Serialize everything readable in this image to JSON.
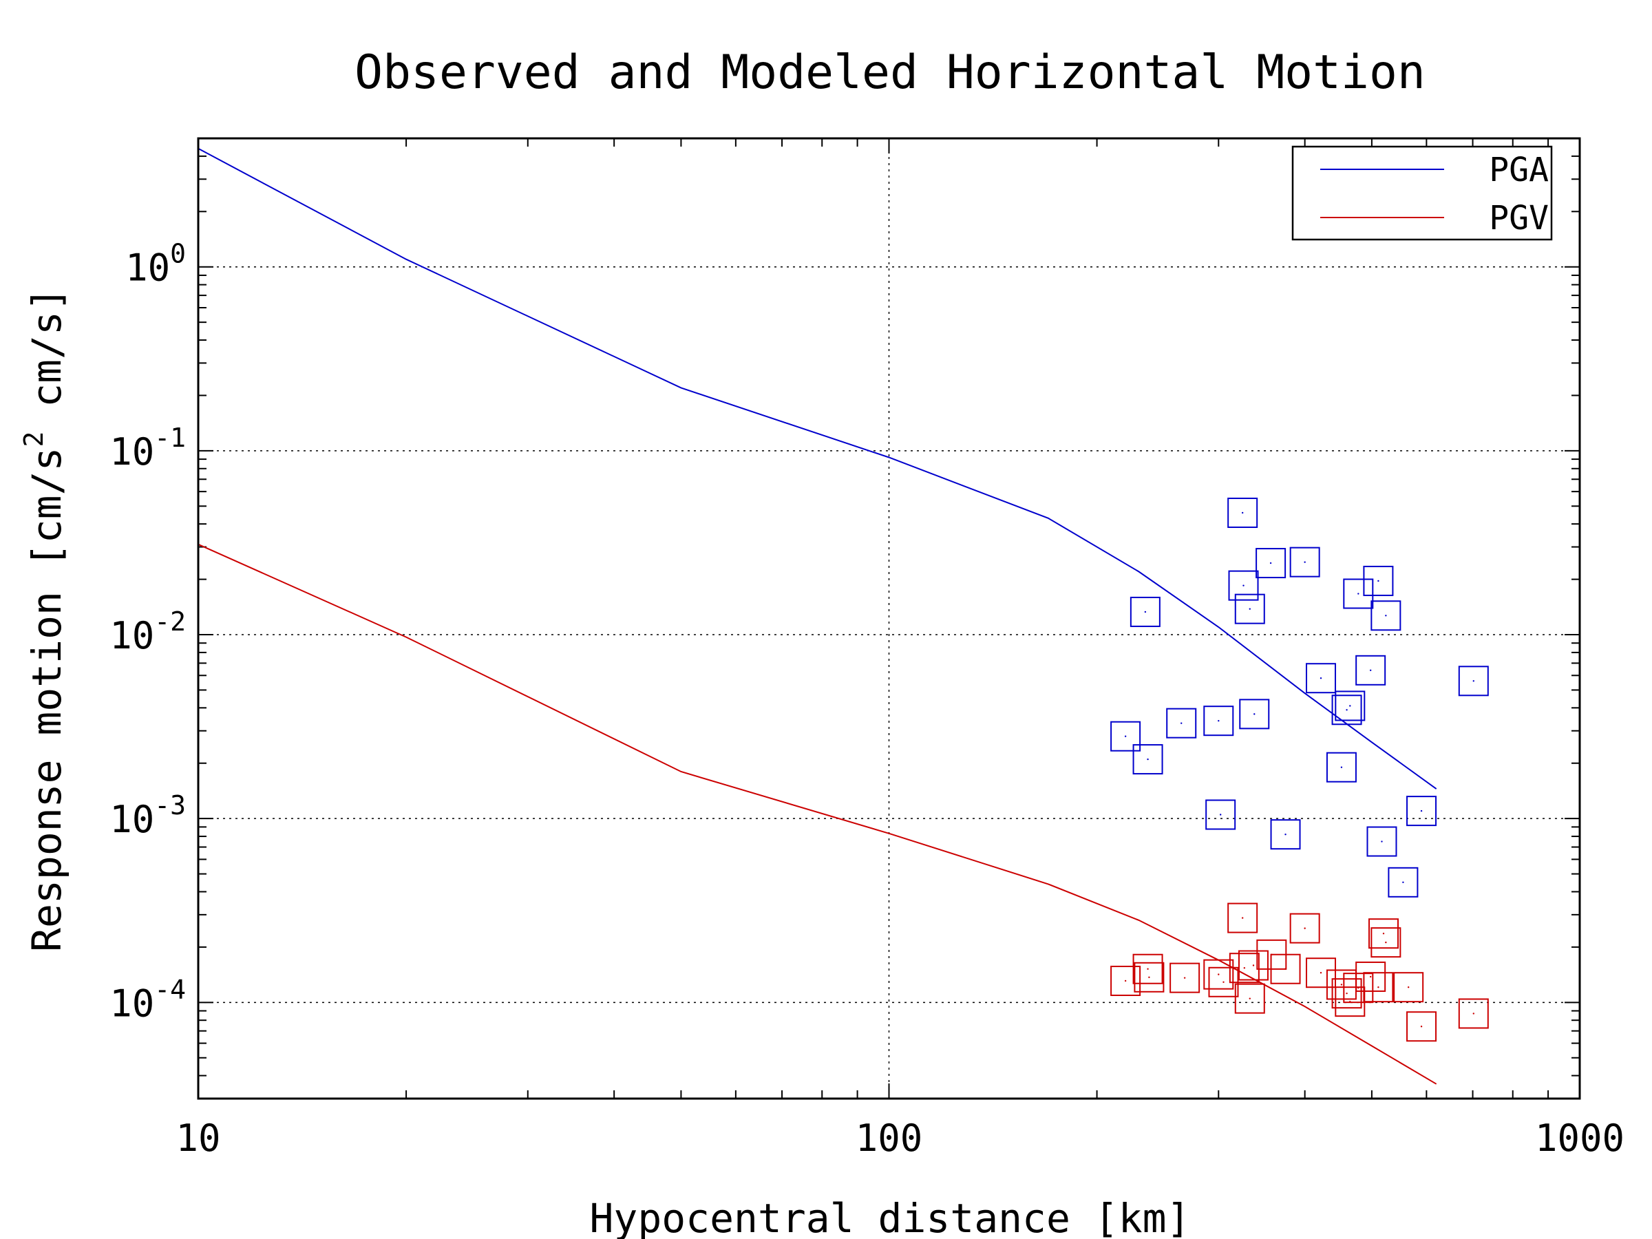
{
  "chart_data": {
    "type": "scatter",
    "title": "Observed and Modeled Horizontal Motion",
    "xlabel": "Hypocentral distance [km]",
    "ylabel": {
      "main": "Response motion  [cm/s",
      "sup": "2",
      "tail": "  cm/s]"
    },
    "xscale": "log",
    "yscale": "log",
    "xlim": [
      10,
      1000
    ],
    "ylim": [
      3e-05,
      5
    ],
    "x_ticks": [
      {
        "value": 10,
        "label": "10"
      },
      {
        "value": 100,
        "label": "100"
      },
      {
        "value": 1000,
        "label": "1000"
      }
    ],
    "y_ticks": [
      {
        "value": 1,
        "base": "10",
        "exp": "0"
      },
      {
        "value": 0.1,
        "base": "10",
        "exp": "-1"
      },
      {
        "value": 0.01,
        "base": "10",
        "exp": "-2"
      },
      {
        "value": 0.001,
        "base": "10",
        "exp": "-3"
      },
      {
        "value": 0.0001,
        "base": "10",
        "exp": "-4"
      }
    ],
    "grid": true,
    "legend": {
      "position": "top-right",
      "entries": [
        "PGA",
        "PGV"
      ]
    },
    "series": [
      {
        "name": "PGA",
        "kind": "line",
        "color": "#0000cc",
        "x": [
          10,
          20,
          50,
          100,
          170,
          230,
          300,
          400,
          500,
          620
        ],
        "y": [
          4.4,
          1.1,
          0.22,
          0.092,
          0.043,
          0.022,
          0.011,
          0.0048,
          0.0026,
          0.00145
        ]
      },
      {
        "name": "PGV",
        "kind": "line",
        "color": "#cc0000",
        "x": [
          10,
          20,
          50,
          100,
          170,
          230,
          300,
          400,
          500,
          620
        ],
        "y": [
          0.031,
          0.0097,
          0.0018,
          0.00083,
          0.00044,
          0.00028,
          0.00017,
          9.5e-05,
          5.8e-05,
          3.6e-05
        ]
      },
      {
        "name": "PGA",
        "kind": "markers",
        "color": "#0000cc",
        "x": [
          235,
          220,
          237,
          265,
          300,
          302,
          325,
          326,
          333,
          338,
          357,
          375,
          400,
          422,
          452,
          460,
          465,
          478,
          498,
          511,
          517,
          524,
          555,
          590,
          702
        ],
        "y": [
          0.0133,
          0.0028,
          0.0021,
          0.0033,
          0.0034,
          0.00105,
          0.046,
          0.0185,
          0.0138,
          0.0037,
          0.0245,
          0.00082,
          0.0248,
          0.0058,
          0.0019,
          0.0039,
          0.0041,
          0.0167,
          0.0064,
          0.0196,
          0.00075,
          0.0127,
          0.00045,
          0.0011,
          0.0056
        ]
      },
      {
        "name": "PGV",
        "kind": "markers",
        "color": "#cc0000",
        "x": [
          220,
          237,
          238,
          268,
          300,
          305,
          325,
          327,
          333,
          337,
          358,
          375,
          400,
          422,
          452,
          460,
          465,
          478,
          498,
          511,
          520,
          524,
          565,
          590,
          702
        ],
        "y": [
          0.000131,
          0.000152,
          0.000137,
          0.000136,
          0.000142,
          0.000129,
          0.000288,
          0.000154,
          0.000105,
          0.000159,
          0.000182,
          0.000152,
          0.000253,
          0.000145,
          0.000125,
          0.000112,
          0.000101,
          0.00012,
          0.000138,
          0.000121,
          0.000237,
          0.000212,
          0.000121,
          7.4e-05,
          8.7e-05
        ]
      }
    ]
  }
}
